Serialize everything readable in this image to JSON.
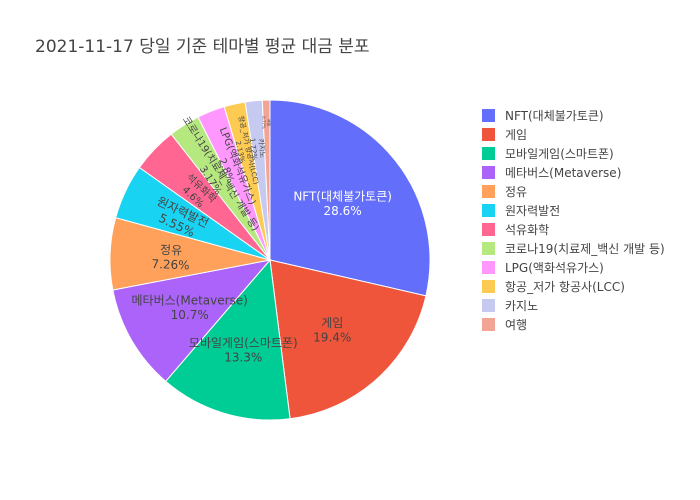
{
  "chart_data": {
    "type": "pie",
    "title": "2021-11-17 당일 기준 테마별 평균 대금 분포",
    "legend_position": "right",
    "slices": [
      {
        "label": "NFT(대체불가토큰)",
        "percent": 28.6,
        "percent_text": "28.6%",
        "color": "#636efa"
      },
      {
        "label": "게임",
        "percent": 19.4,
        "percent_text": "19.4%",
        "color": "#ef553b"
      },
      {
        "label": "모바일게임(스마트폰)",
        "percent": 13.3,
        "percent_text": "13.3%",
        "color": "#00cc96"
      },
      {
        "label": "메타버스(Metaverse)",
        "percent": 10.7,
        "percent_text": "10.7%",
        "color": "#ab63fa"
      },
      {
        "label": "정유",
        "percent": 7.26,
        "percent_text": "7.26%",
        "color": "#ffa15a"
      },
      {
        "label": "원자력발전",
        "percent": 5.55,
        "percent_text": "5.55%",
        "color": "#19d3f3"
      },
      {
        "label": "석유화학",
        "percent": 4.6,
        "percent_text": "4.6%",
        "color": "#ff6692"
      },
      {
        "label": "코로나19(치료제_백신 개발 등)",
        "percent": 3.17,
        "percent_text": "3.17%",
        "color": "#b6e880"
      },
      {
        "label": "LPG(액화석유가스)",
        "percent": 2.8,
        "percent_text": "2.8%",
        "color": "#ff97ff"
      },
      {
        "label": "항공_저가 항공사(LCC)",
        "percent": 2.13,
        "percent_text": "2.13%",
        "color": "#fecb52"
      },
      {
        "label": "카지노",
        "percent": 1.72,
        "percent_text": "1.72%",
        "color": "#c6c9f0"
      },
      {
        "label": "여행",
        "percent": 0.77,
        "percent_text": "0.77%",
        "color": "#f2a595"
      }
    ]
  }
}
